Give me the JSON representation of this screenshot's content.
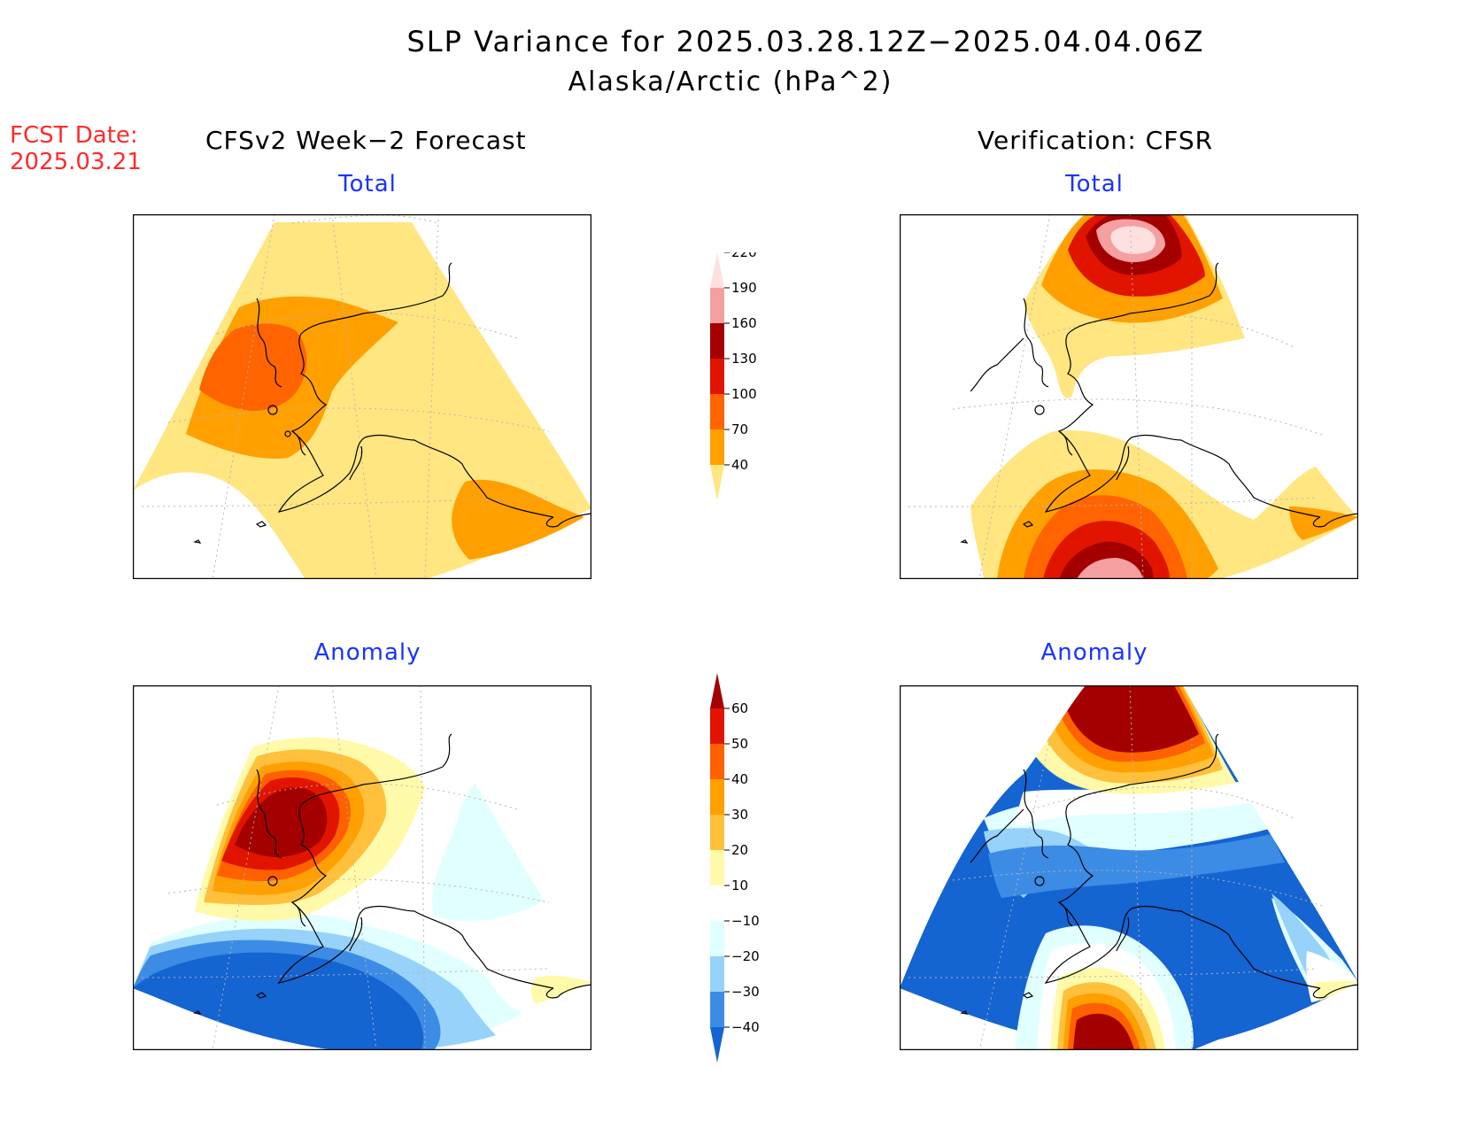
{
  "header": {
    "title": "SLP Variance for 2025.03.28.12Z−2025.04.04.06Z",
    "subtitle": "Alaska/Arctic (hPa^2)",
    "fcst_label": "FCST Date:",
    "fcst_date": "2025.03.21",
    "left_column": "CFSv2 Week−2 Forecast",
    "right_column": "Verification: CFSR"
  },
  "panels": {
    "top_left": "Total",
    "top_right": "Total",
    "bottom_left": "Anomaly",
    "bottom_right": "Anomaly"
  },
  "colorbars": {
    "total": {
      "ticks": [
        "40",
        "70",
        "100",
        "130",
        "160",
        "190",
        "220"
      ],
      "colors": [
        "#ffe680",
        "#ffa000",
        "#ff6400",
        "#e11400",
        "#a50000",
        "#f5a0a0",
        "#ffe0e0"
      ]
    },
    "anomaly": {
      "ticks": [
        "−40",
        "−30",
        "−20",
        "−10",
        "10",
        "20",
        "30",
        "40",
        "50",
        "60"
      ],
      "colors": [
        "#1464d2",
        "#3c8ce6",
        "#96d2fa",
        "#e1ffff",
        "#ffffff",
        "#fffaaa",
        "#ffc03c",
        "#ffa000",
        "#ff6000",
        "#e11400",
        "#a50000"
      ]
    }
  },
  "colors": {
    "yellow": "#ffe680",
    "orange": "#ffa000",
    "dark_orange": "#ff6400",
    "red": "#e11400",
    "dark_red": "#a50000",
    "pink": "#f5a0a0",
    "light_pink": "#ffe0e0",
    "blue": "#1464d2",
    "mid_blue": "#3c8ce6",
    "light_blue": "#96d2fa",
    "pale_blue": "#e1ffff",
    "pale_yellow": "#fffaaa",
    "light_orange": "#ffc03c",
    "title_blue": "#1a33ff",
    "fcst_red": "#ff2a2a"
  }
}
